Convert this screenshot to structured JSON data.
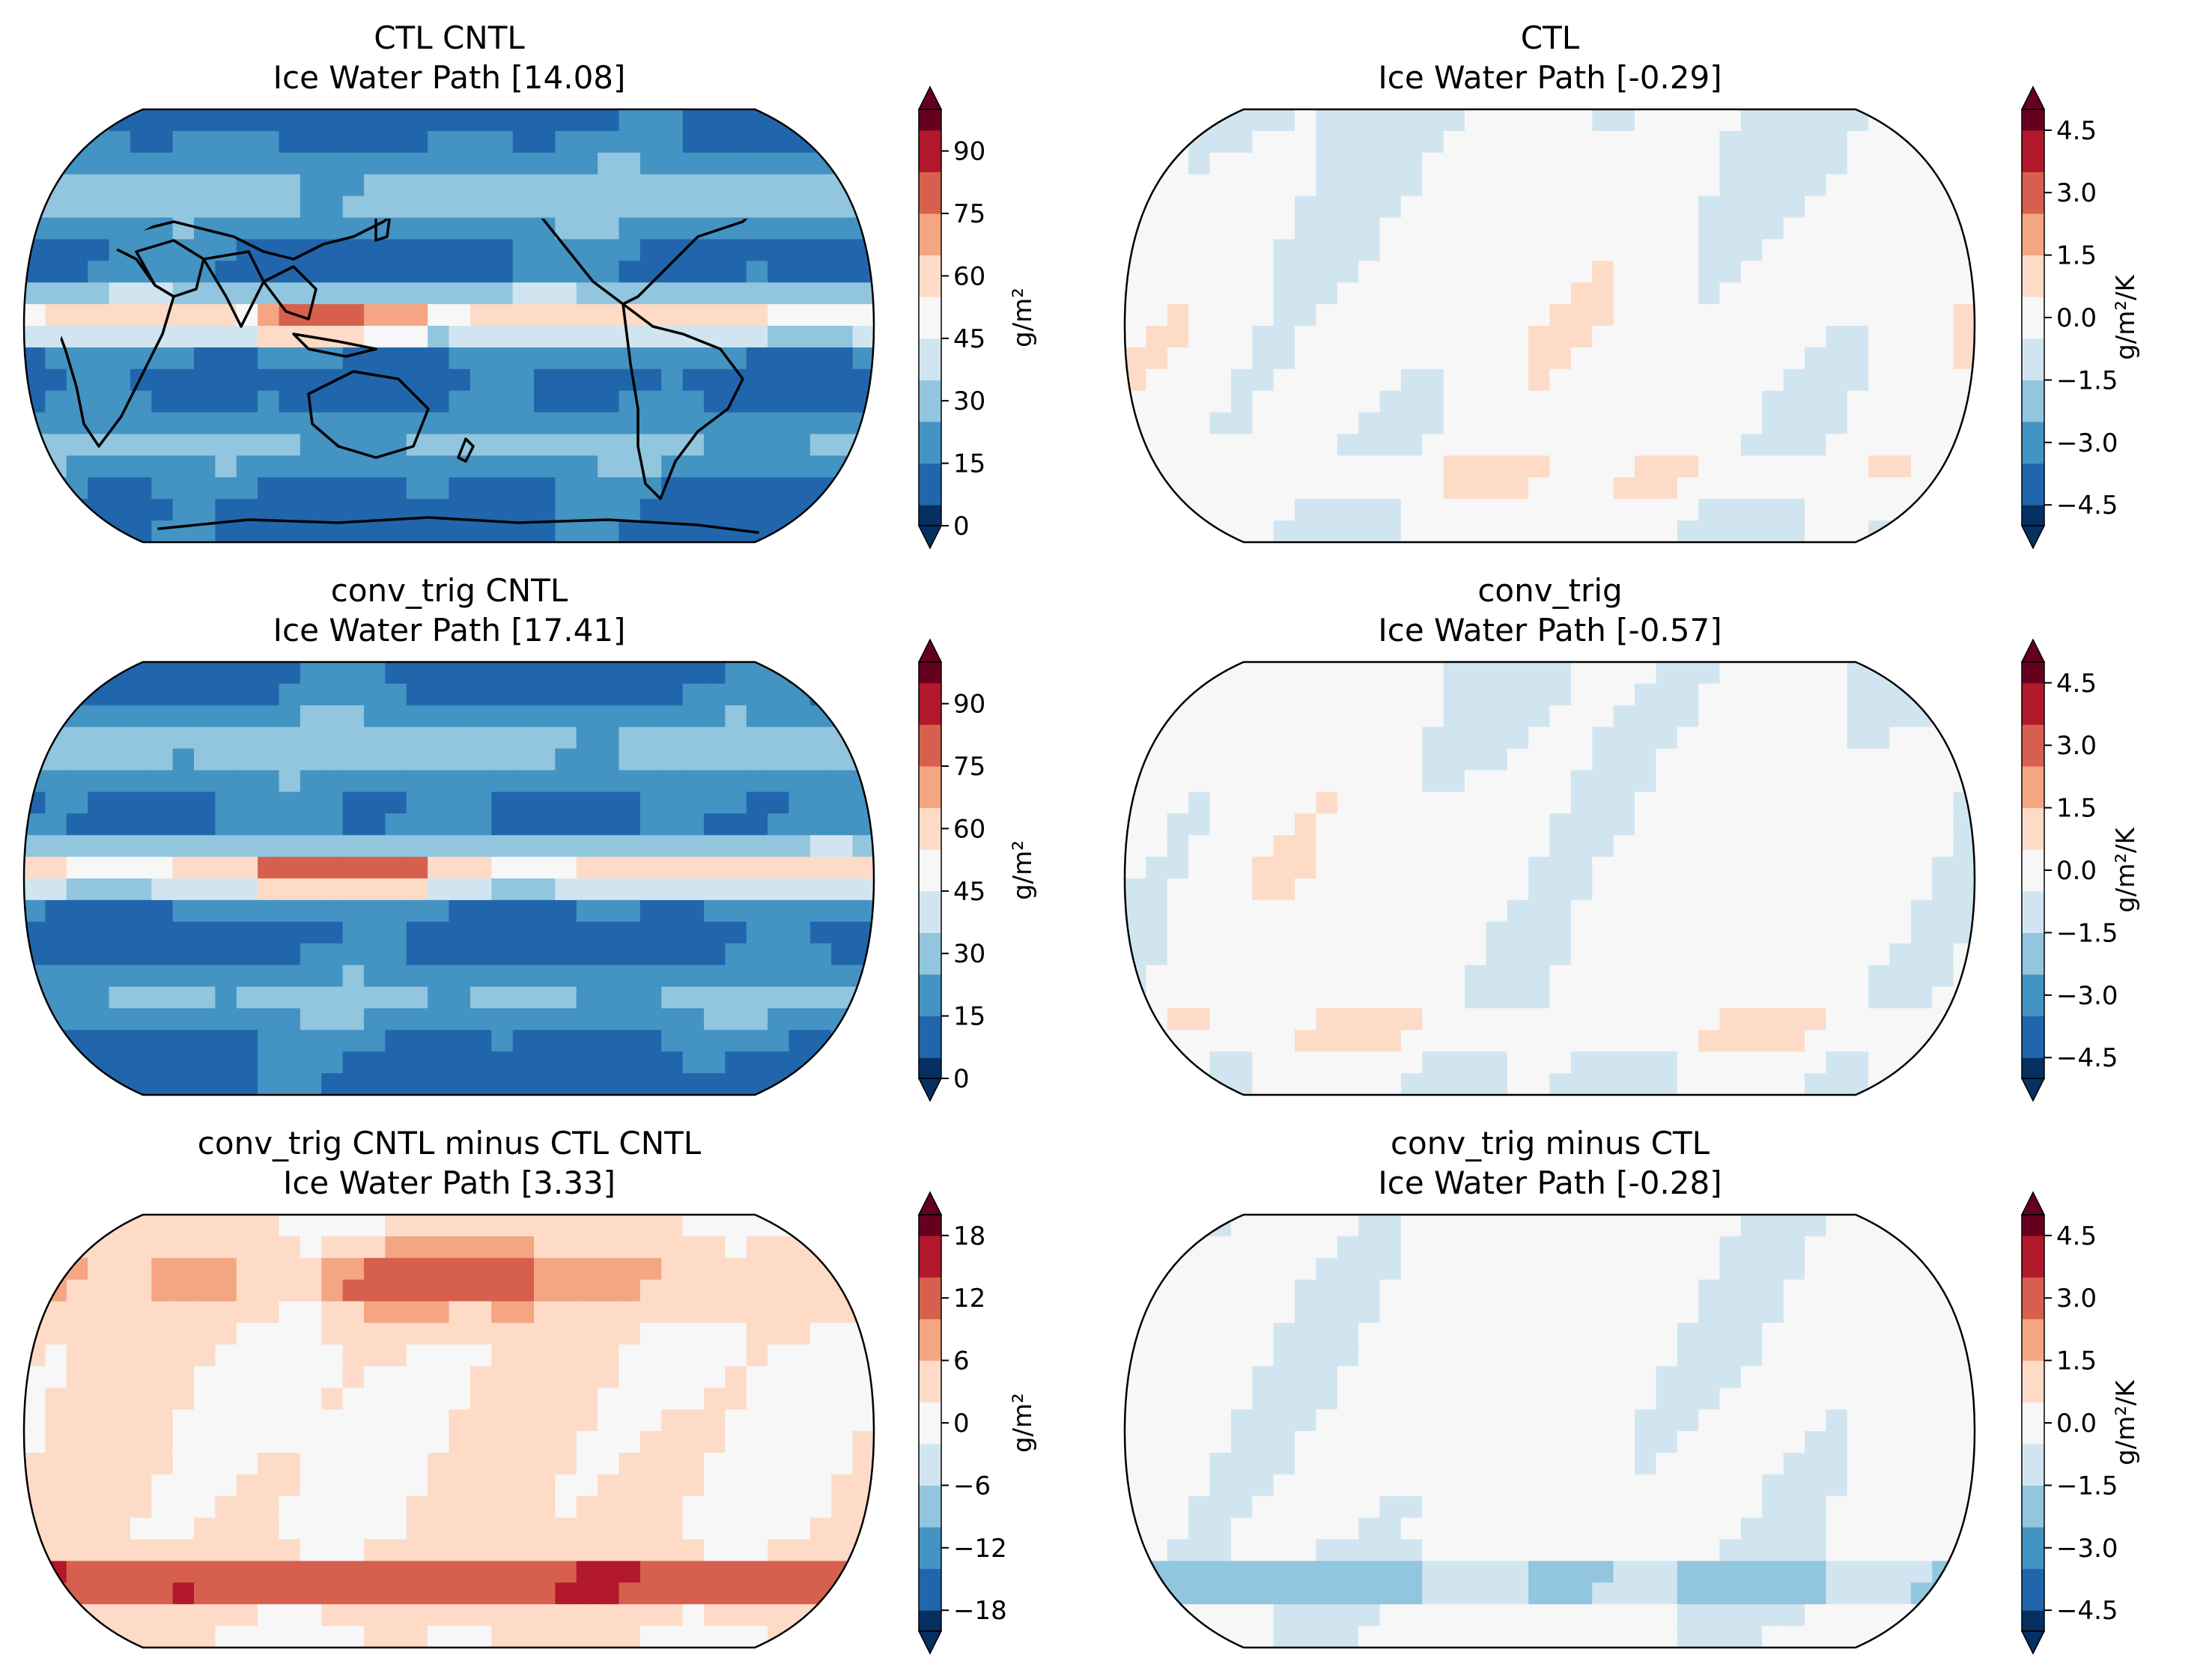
{
  "chart_data": [
    {
      "type": "heatmap",
      "projection": "Robinson",
      "title_line1": "CTL CNTL",
      "title_line2": "Ice Water Path [14.08]",
      "colorbar": {
        "label": "g/m²",
        "ticks": [
          "0",
          "15",
          "30",
          "45",
          "60",
          "75",
          "90"
        ],
        "tick_values": [
          0,
          15,
          30,
          45,
          60,
          75,
          90
        ],
        "range": [
          0,
          100
        ],
        "extend": "both",
        "colormap": "RdBu_r"
      },
      "field": "base",
      "global_mean": 14.08
    },
    {
      "type": "heatmap",
      "projection": "Robinson",
      "title_line1": "CTL",
      "title_line2": "Ice Water Path [-0.29]",
      "colorbar": {
        "label": "g/m²/K",
        "ticks": [
          "4.5",
          "3.0",
          "1.5",
          "0.0",
          "−1.5",
          "−3.0",
          "−4.5"
        ],
        "tick_values": [
          4.5,
          3.0,
          1.5,
          0.0,
          -1.5,
          -3.0,
          -4.5
        ],
        "range": [
          -5,
          5
        ],
        "extend": "both",
        "colormap": "RdBu_r"
      },
      "field": "sensitivity",
      "global_mean": -0.29
    },
    {
      "type": "heatmap",
      "projection": "Robinson",
      "title_line1": "conv_trig CNTL",
      "title_line2": "Ice Water Path [17.41]",
      "colorbar": {
        "label": "g/m²",
        "ticks": [
          "0",
          "15",
          "30",
          "45",
          "60",
          "75",
          "90"
        ],
        "tick_values": [
          0,
          15,
          30,
          45,
          60,
          75,
          90
        ],
        "range": [
          0,
          100
        ],
        "extend": "both",
        "colormap": "RdBu_r"
      },
      "field": "base",
      "global_mean": 17.41
    },
    {
      "type": "heatmap",
      "projection": "Robinson",
      "title_line1": "conv_trig",
      "title_line2": "Ice Water Path [-0.57]",
      "colorbar": {
        "label": "g/m²/K",
        "ticks": [
          "4.5",
          "3.0",
          "1.5",
          "0.0",
          "−1.5",
          "−3.0",
          "−4.5"
        ],
        "tick_values": [
          4.5,
          3.0,
          1.5,
          0.0,
          -1.5,
          -3.0,
          -4.5
        ],
        "range": [
          -5,
          5
        ],
        "extend": "both",
        "colormap": "RdBu_r"
      },
      "field": "sensitivity",
      "global_mean": -0.57
    },
    {
      "type": "heatmap",
      "projection": "Robinson",
      "title_line1": "conv_trig CNTL minus CTL CNTL",
      "title_line2": "Ice Water Path [3.33]",
      "colorbar": {
        "label": "g/m²",
        "ticks": [
          "18",
          "12",
          "6",
          "0",
          "−6",
          "−12",
          "−18"
        ],
        "tick_values": [
          18,
          12,
          6,
          0,
          -6,
          -12,
          -18
        ],
        "range": [
          -20,
          20
        ],
        "extend": "both",
        "colormap": "RdBu_r"
      },
      "field": "difference",
      "global_mean": 3.33
    },
    {
      "type": "heatmap",
      "projection": "Robinson",
      "title_line1": "conv_trig minus CTL",
      "title_line2": "Ice Water Path [-0.28]",
      "colorbar": {
        "label": "g/m²/K",
        "ticks": [
          "4.5",
          "3.0",
          "1.5",
          "0.0",
          "−1.5",
          "−3.0",
          "−4.5"
        ],
        "tick_values": [
          4.5,
          3.0,
          1.5,
          0.0,
          -1.5,
          -3.0,
          -4.5
        ],
        "range": [
          -5,
          5
        ],
        "extend": "both",
        "colormap": "RdBu_r"
      },
      "field": "sensitivity_diff",
      "global_mean": -0.28
    }
  ],
  "colors": {
    "dark_blue": "#053061",
    "blue": "#2166ac",
    "mid_blue": "#4393c3",
    "light_blue": "#92c5de",
    "pale_blue": "#d1e5f0",
    "white": "#f7f7f7",
    "pale_red": "#fddbc7",
    "light_red": "#f4a582",
    "mid_red": "#d6604d",
    "red": "#b2182b",
    "dark_red": "#67001f"
  }
}
